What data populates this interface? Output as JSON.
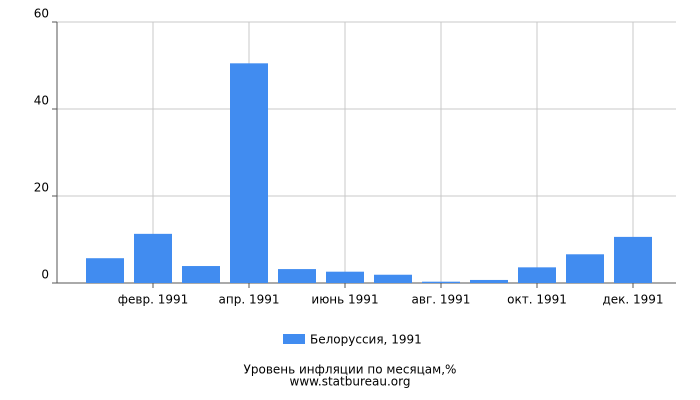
{
  "chart_data": {
    "type": "bar",
    "categories": [
      null,
      "февр. 1991",
      null,
      "апр. 1991",
      null,
      "июнь 1991",
      null,
      "авг. 1991",
      null,
      "окт. 1991",
      null,
      "дек. 1991"
    ],
    "series": [
      {
        "name": "Белоруссия, 1991",
        "color": "#418cf0",
        "values": [
          5.7,
          11.3,
          3.9,
          50.5,
          3.2,
          2.6,
          1.9,
          0.3,
          0.7,
          3.6,
          6.6,
          10.6
        ]
      }
    ],
    "ylim": [
      0,
      60
    ],
    "yticks": [
      0,
      20,
      40,
      60
    ],
    "grid": true,
    "caption": "Уровень инфляции по месяцам,%",
    "source": "www.statbureau.org"
  }
}
